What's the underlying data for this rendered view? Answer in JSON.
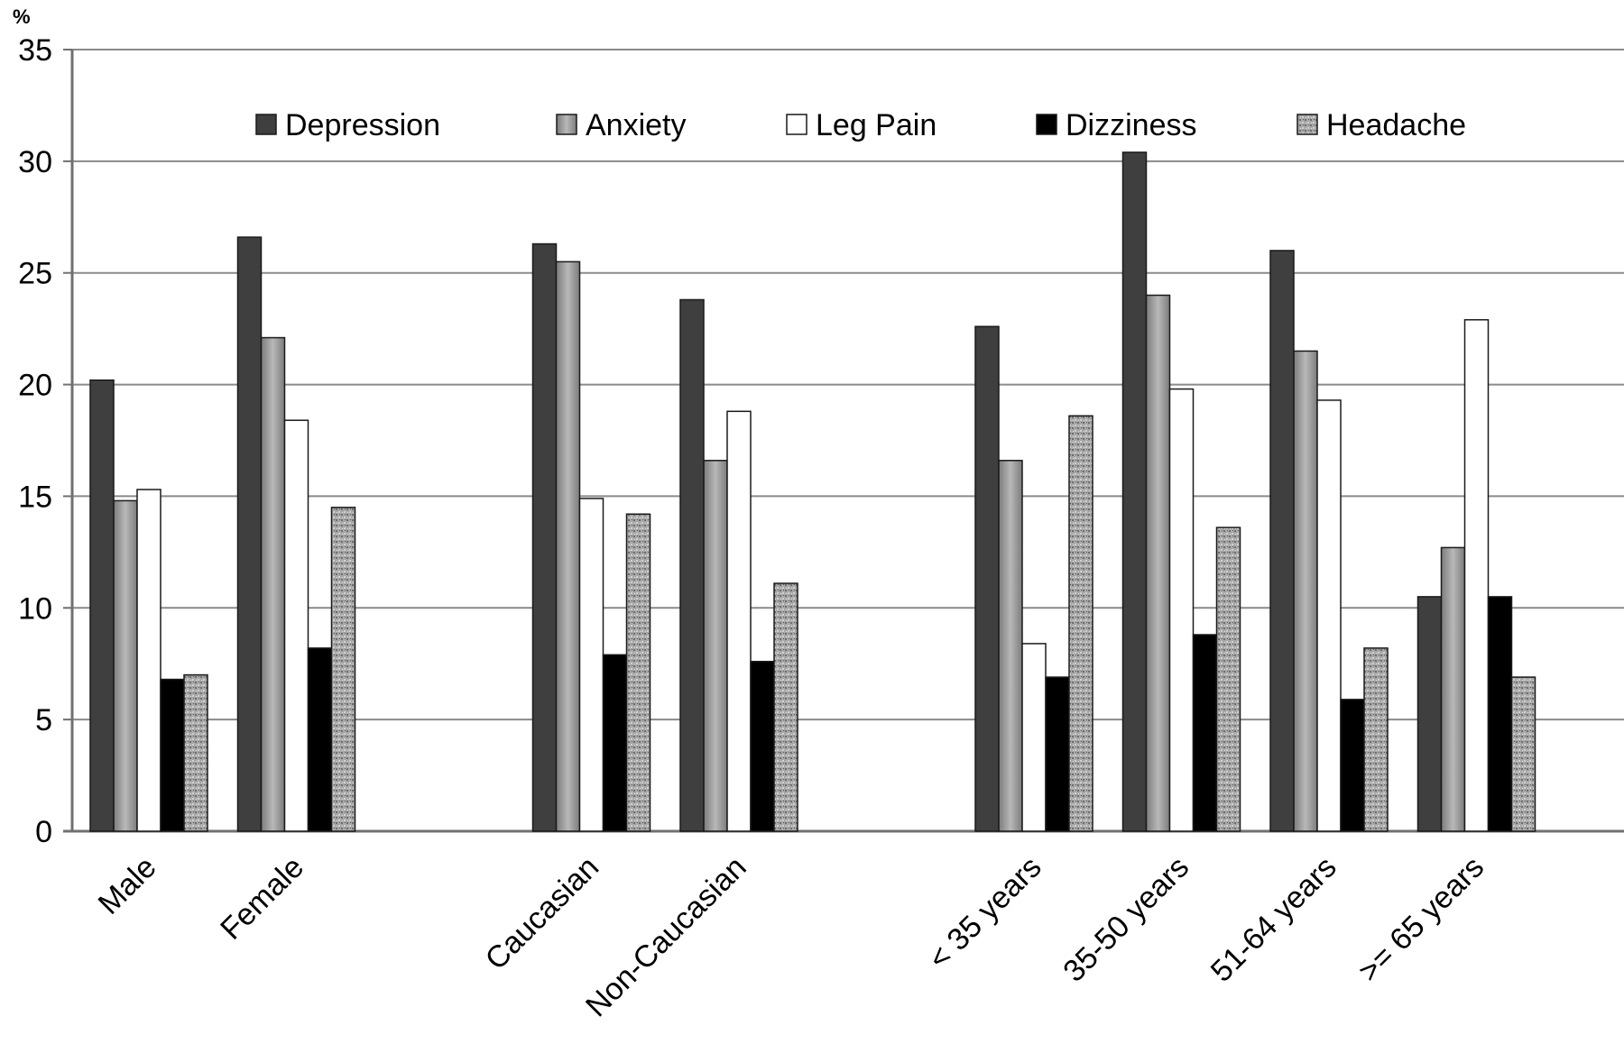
{
  "chart_data": {
    "type": "bar",
    "y_unit": "%",
    "ylim": [
      0,
      35
    ],
    "y_ticks": [
      0,
      5,
      10,
      15,
      20,
      25,
      30,
      35
    ],
    "grid": true,
    "legend_position": "top",
    "categories": [
      "Male",
      "Female",
      "",
      "Caucasian",
      "Non-Caucasian",
      "",
      "< 35 years",
      "35-50 years",
      "51-64 years",
      ">= 65 years"
    ],
    "series": [
      {
        "name": "Depression",
        "color": "#3f3f3f",
        "pattern": "solid",
        "values": [
          20.2,
          26.6,
          null,
          26.3,
          23.8,
          null,
          22.6,
          30.4,
          26.0,
          10.5
        ]
      },
      {
        "name": "Anxiety",
        "color": "#9a9a9a",
        "pattern": "gradient",
        "values": [
          14.8,
          22.1,
          null,
          25.5,
          16.6,
          null,
          16.6,
          24.0,
          21.5,
          12.7
        ]
      },
      {
        "name": "Leg Pain",
        "color": "#ffffff",
        "pattern": "solid",
        "values": [
          15.3,
          18.4,
          null,
          14.9,
          18.8,
          null,
          8.4,
          19.8,
          19.3,
          22.9
        ]
      },
      {
        "name": "Dizziness",
        "color": "#000000",
        "pattern": "solid",
        "values": [
          6.8,
          8.2,
          null,
          7.9,
          7.6,
          null,
          6.9,
          8.8,
          5.9,
          10.5
        ]
      },
      {
        "name": "Headache",
        "color": "#a8a8a8",
        "pattern": "speckle",
        "values": [
          7.0,
          14.5,
          null,
          14.2,
          11.1,
          null,
          18.6,
          13.6,
          8.2,
          6.9
        ]
      }
    ]
  }
}
